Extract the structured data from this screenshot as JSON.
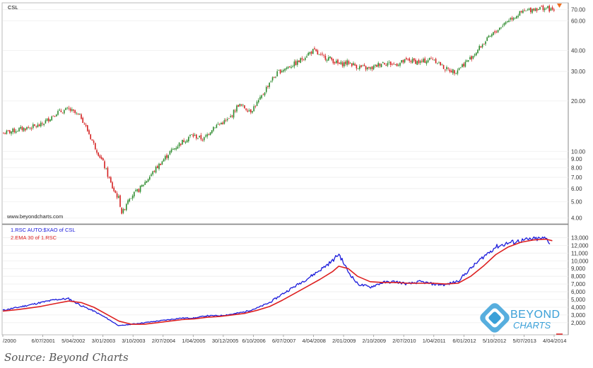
{
  "chart_data": [
    {
      "type": "candlestick",
      "title": "CSL",
      "watermark": "www.beyondcharts.com",
      "y_scale": "log",
      "ylim": [
        3.8,
        74
      ],
      "yticks": [
        "4.00",
        "5.00",
        "6.00",
        "7.00",
        "8.00",
        "9.00",
        "10.00",
        "20.00",
        "30.00",
        "40.00",
        "60.00",
        "70.00"
      ],
      "up_color": "#2e8b2e",
      "down_color": "#d42020",
      "series": [
        {
          "name": "CSL",
          "x": [
            "2000-01",
            "2000-06",
            "2001-01",
            "2001-06",
            "2001-10",
            "2002-02",
            "2002-06",
            "2002-09",
            "2002-12",
            "2003-02",
            "2003-03",
            "2003-05",
            "2003-08",
            "2003-11",
            "2004-02",
            "2004-06",
            "2004-09",
            "2005-01",
            "2005-05",
            "2005-08",
            "2006-01",
            "2006-04",
            "2006-08",
            "2006-11",
            "2007-02",
            "2007-05",
            "2007-08",
            "2007-11",
            "2008-02",
            "2008-04",
            "2008-06",
            "2008-09",
            "2008-12",
            "2009-03",
            "2009-06",
            "2009-10",
            "2010-02",
            "2010-06",
            "2010-10",
            "2011-02",
            "2011-06",
            "2011-10",
            "2012-01",
            "2012-06",
            "2012-10",
            "2013-02",
            "2013-06",
            "2013-10",
            "2014-02",
            "2014-06",
            "2014-08"
          ],
          "values": [
            12.8,
            13.5,
            14.3,
            17.0,
            17.8,
            16.0,
            11.0,
            8.5,
            6.0,
            5.2,
            4.2,
            5.3,
            5.8,
            6.8,
            8.0,
            9.8,
            11.0,
            12.5,
            11.8,
            14.0,
            15.5,
            19.0,
            17.5,
            20.5,
            26.0,
            30.0,
            32.0,
            34.0,
            38.0,
            40.0,
            37.0,
            36.0,
            33.0,
            34.0,
            32.0,
            31.0,
            34.0,
            33.0,
            35.0,
            34.0,
            36.0,
            31.0,
            30.0,
            36.0,
            44.0,
            52.0,
            61.0,
            67.0,
            71.0,
            72.0,
            69.0
          ]
        }
      ]
    },
    {
      "type": "line",
      "ylim": [
        800,
        14500
      ],
      "yticks": [
        "2,000",
        "3,000",
        "4,000",
        "5,000",
        "6,000",
        "7,000",
        "8,000",
        "9,000",
        "10,000",
        "11,000",
        "12,000",
        "13,000"
      ],
      "x_ticks": [
        "/2000",
        "6/07/2001",
        "5/04/2002",
        "3/01/2003",
        "3/10/2003",
        "2/07/2004",
        "1/04/2005",
        "30/12/2005",
        "6/10/2006",
        "6/07/2007",
        "4/04/2008",
        "2/01/2009",
        "2/10/2009",
        "2/07/2010",
        "1/04/2011",
        "6/01/2012",
        "5/10/2012",
        "5/07/2013",
        "4/04/2014"
      ],
      "series": [
        {
          "name": "1.RSC  AUTO:$XAO of CSL",
          "color": "#1a1adb",
          "x": [
            "2000-01",
            "2000-06",
            "2001-01",
            "2001-06",
            "2001-10",
            "2002-02",
            "2002-06",
            "2002-10",
            "2003-02",
            "2003-06",
            "2003-10",
            "2004-02",
            "2004-06",
            "2004-10",
            "2005-02",
            "2005-06",
            "2005-10",
            "2006-02",
            "2006-06",
            "2006-10",
            "2007-02",
            "2007-06",
            "2007-10",
            "2008-02",
            "2008-06",
            "2008-10",
            "2008-12",
            "2009-03",
            "2009-06",
            "2009-10",
            "2010-02",
            "2010-06",
            "2010-10",
            "2011-02",
            "2011-06",
            "2011-10",
            "2012-02",
            "2012-06",
            "2012-10",
            "2013-02",
            "2013-06",
            "2013-10",
            "2014-02",
            "2014-06",
            "2014-08"
          ],
          "values": [
            3600,
            4000,
            4600,
            5000,
            5100,
            4200,
            3500,
            2600,
            1600,
            1800,
            2000,
            2200,
            2400,
            2600,
            2600,
            2900,
            2900,
            3100,
            3400,
            3900,
            4600,
            5700,
            6700,
            7700,
            8800,
            10000,
            10900,
            8600,
            7000,
            6600,
            7200,
            7300,
            7000,
            7300,
            7000,
            6900,
            7400,
            9000,
            10500,
            11800,
            12300,
            12600,
            12800,
            12900,
            12000
          ]
        },
        {
          "name": "2.EMA 30  of 1.RSC",
          "color": "#dd2020",
          "x": [
            "2000-01",
            "2000-06",
            "2001-01",
            "2001-06",
            "2001-10",
            "2002-02",
            "2002-06",
            "2002-10",
            "2003-02",
            "2003-06",
            "2003-10",
            "2004-02",
            "2004-06",
            "2004-10",
            "2005-02",
            "2005-06",
            "2005-10",
            "2006-02",
            "2006-06",
            "2006-10",
            "2007-02",
            "2007-06",
            "2007-10",
            "2008-02",
            "2008-06",
            "2008-10",
            "2008-12",
            "2009-03",
            "2009-06",
            "2009-10",
            "2010-02",
            "2010-06",
            "2010-10",
            "2011-02",
            "2011-06",
            "2011-10",
            "2012-02",
            "2012-06",
            "2012-10",
            "2013-02",
            "2013-06",
            "2013-10",
            "2014-02",
            "2014-06",
            "2014-08"
          ],
          "values": [
            3500,
            3700,
            4100,
            4500,
            4800,
            4600,
            4000,
            3100,
            2200,
            1800,
            1800,
            2000,
            2200,
            2400,
            2500,
            2700,
            2800,
            3000,
            3200,
            3600,
            4100,
            4900,
            5800,
            6700,
            7600,
            8600,
            9300,
            9000,
            8000,
            7300,
            7200,
            7200,
            7100,
            7100,
            7100,
            7000,
            7100,
            8000,
            9300,
            10800,
            11800,
            12400,
            12700,
            12800,
            12600
          ]
        }
      ]
    }
  ],
  "source": "Source: Beyond Charts",
  "logo": {
    "line1": "BEYOND",
    "line2": "CHARTS",
    "color": "#3aa0d8"
  }
}
